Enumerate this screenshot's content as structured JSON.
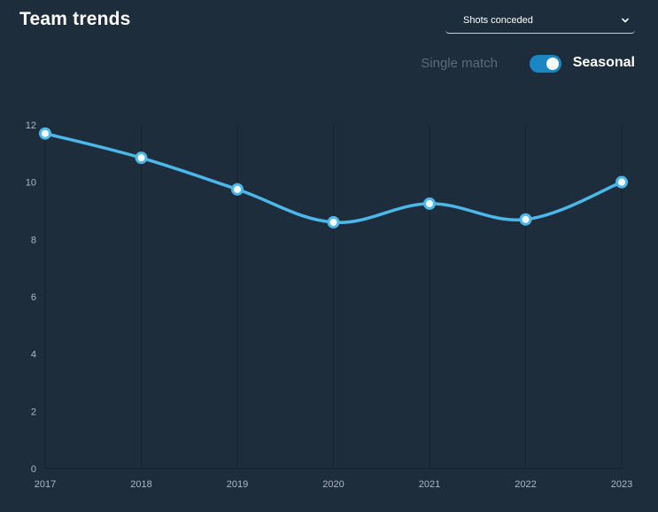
{
  "header": {
    "title": "Team trends"
  },
  "metric_select": {
    "value": "Shots conceded",
    "icon": "chevron-down-icon"
  },
  "mode_toggle": {
    "left_label": "Single match",
    "right_label": "Seasonal",
    "active": "Seasonal"
  },
  "colors": {
    "background": "#1d2d3c",
    "line": "#4cb8ea",
    "toggle": "#1b86c4"
  },
  "chart_data": {
    "type": "line",
    "title": "",
    "xlabel": "",
    "ylabel": "",
    "categories": [
      "2017",
      "2018",
      "2019",
      "2020",
      "2021",
      "2022",
      "2023"
    ],
    "series": [
      {
        "values": [
          11.7,
          10.85,
          9.75,
          8.6,
          9.25,
          8.7,
          10.0
        ]
      }
    ],
    "ylim": [
      0,
      12
    ],
    "yticks": [
      "0",
      "2",
      "4",
      "6",
      "8",
      "10",
      "12"
    ],
    "grid": "vertical",
    "smooth": true
  }
}
